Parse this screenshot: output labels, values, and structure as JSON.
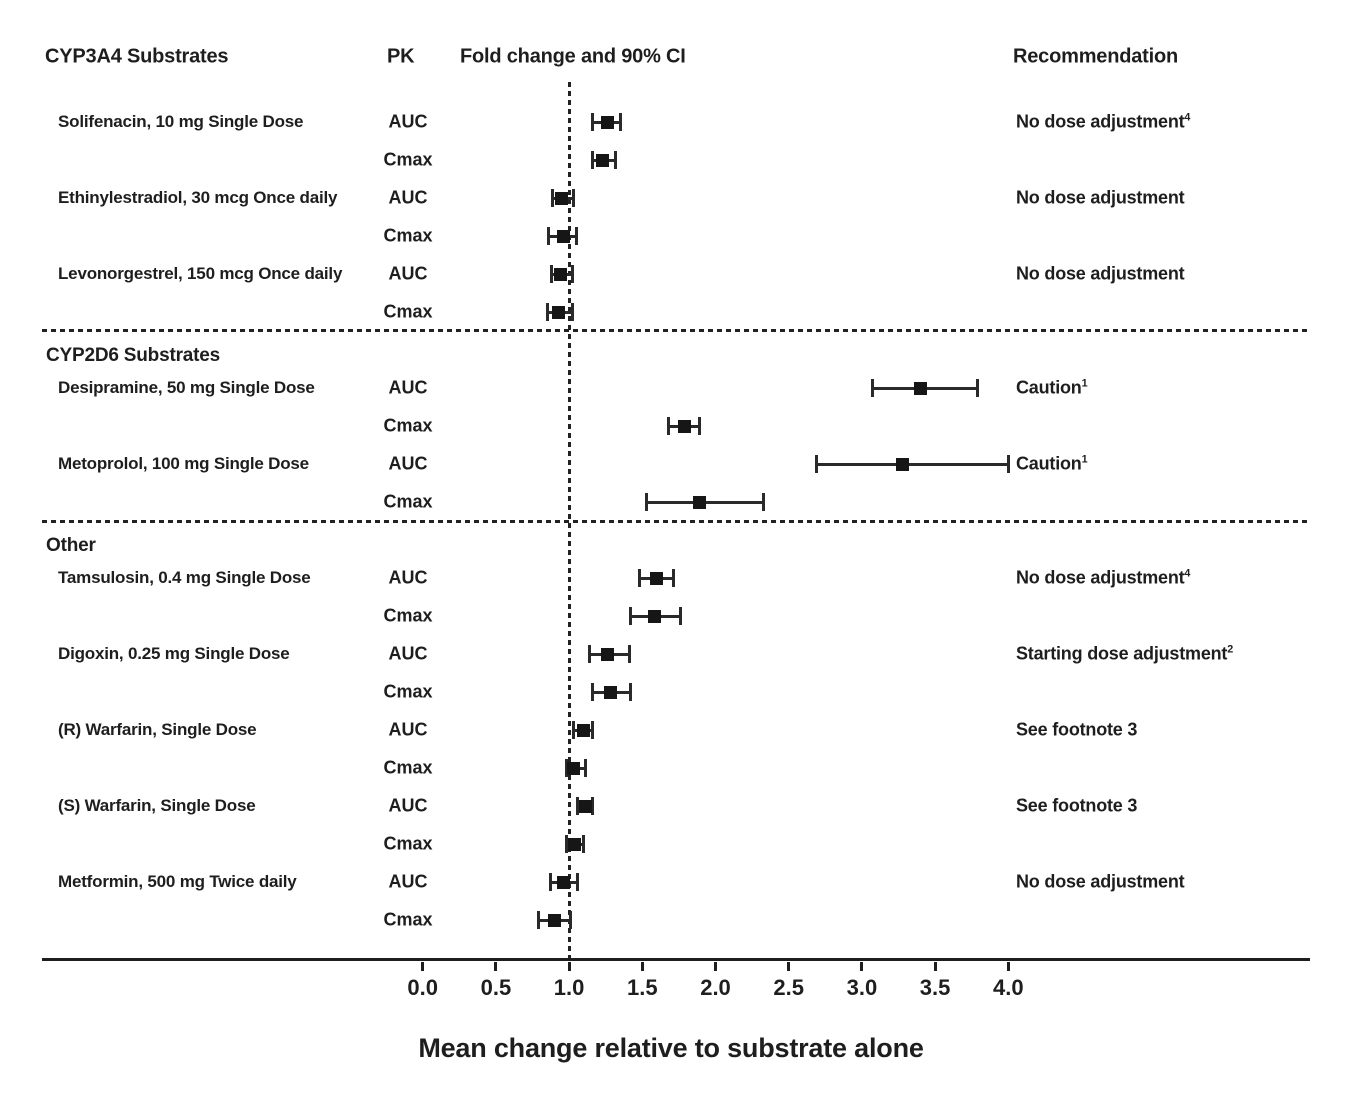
{
  "header": {
    "col_substrates": "CYP3A4 Substrates",
    "col_pk": "PK",
    "col_fold": "Fold change and 90% CI",
    "col_rec": "Recommendation"
  },
  "colors": {
    "ink": "#1e1e1e",
    "background": "#ffffff"
  },
  "chart_data": {
    "type": "forest",
    "title": "Fold change and 90% CI",
    "xlabel": "Mean change relative to substrate alone",
    "axis": {
      "ticks": [
        0.0,
        0.5,
        1.0,
        1.5,
        2.0,
        2.5,
        3.0,
        3.5,
        4.0
      ],
      "tick_labels": [
        "0.0",
        "0.5",
        "1.0",
        "1.5",
        "2.0",
        "2.5",
        "3.0",
        "3.5",
        "4.0"
      ],
      "range": [
        0.0,
        4.0
      ],
      "ref_line": 1.0,
      "grid": false
    },
    "sections": [
      {
        "label": "",
        "rows": [
          {
            "substrate": "Solifenacin, 10 mg Single Dose",
            "pk": "AUC",
            "value": 1.26,
            "lo": 1.16,
            "hi": 1.35,
            "rec": "No dose adjustment",
            "rec_sup": "4"
          },
          {
            "substrate": "",
            "pk": "Cmax",
            "value": 1.23,
            "lo": 1.16,
            "hi": 1.32
          },
          {
            "substrate": "Ethinylestradiol, 30 mcg Once daily",
            "pk": "AUC",
            "value": 0.95,
            "lo": 0.89,
            "hi": 1.03,
            "rec": "No dose adjustment"
          },
          {
            "substrate": "",
            "pk": "Cmax",
            "value": 0.96,
            "lo": 0.86,
            "hi": 1.05
          },
          {
            "substrate": "Levonorgestrel, 150 mcg Once daily",
            "pk": "AUC",
            "value": 0.94,
            "lo": 0.88,
            "hi": 1.02,
            "rec": "No dose adjustment"
          },
          {
            "substrate": "",
            "pk": "Cmax",
            "value": 0.93,
            "lo": 0.85,
            "hi": 1.02
          }
        ]
      },
      {
        "label": "CYP2D6 Substrates",
        "rows": [
          {
            "substrate": "Desipramine, 50 mg Single Dose",
            "pk": "AUC",
            "value": 3.4,
            "lo": 3.07,
            "hi": 3.79,
            "rec": "Caution",
            "rec_sup": "1"
          },
          {
            "substrate": "",
            "pk": "Cmax",
            "value": 1.79,
            "lo": 1.68,
            "hi": 1.89
          },
          {
            "substrate": "Metoprolol, 100 mg Single Dose",
            "pk": "AUC",
            "value": 3.28,
            "lo": 2.69,
            "hi": 4.0,
            "rec": "Caution",
            "rec_sup": "1"
          },
          {
            "substrate": "",
            "pk": "Cmax",
            "value": 1.89,
            "lo": 1.53,
            "hi": 2.33
          }
        ]
      },
      {
        "label": "Other",
        "rows": [
          {
            "substrate": "Tamsulosin, 0.4 mg Single Dose",
            "pk": "AUC",
            "value": 1.6,
            "lo": 1.48,
            "hi": 1.71,
            "rec": "No dose adjustment",
            "rec_sup": "4"
          },
          {
            "substrate": "",
            "pk": "Cmax",
            "value": 1.58,
            "lo": 1.42,
            "hi": 1.76
          },
          {
            "substrate": "Digoxin, 0.25 mg Single Dose",
            "pk": "AUC",
            "value": 1.26,
            "lo": 1.14,
            "hi": 1.41,
            "rec": "Starting dose adjustment",
            "rec_sup": "2"
          },
          {
            "substrate": "",
            "pk": "Cmax",
            "value": 1.28,
            "lo": 1.16,
            "hi": 1.42
          },
          {
            "substrate": "(R) Warfarin, Single Dose",
            "pk": "AUC",
            "value": 1.1,
            "lo": 1.03,
            "hi": 1.16,
            "rec": "See footnote 3"
          },
          {
            "substrate": "",
            "pk": "Cmax",
            "value": 1.03,
            "lo": 0.98,
            "hi": 1.11
          },
          {
            "substrate": "(S) Warfarin, Single Dose",
            "pk": "AUC",
            "value": 1.11,
            "lo": 1.06,
            "hi": 1.16,
            "rec": "See footnote 3"
          },
          {
            "substrate": "",
            "pk": "Cmax",
            "value": 1.04,
            "lo": 0.98,
            "hi": 1.1
          },
          {
            "substrate": "Metformin, 500 mg Twice daily",
            "pk": "AUC",
            "value": 0.96,
            "lo": 0.87,
            "hi": 1.06,
            "rec": "No dose adjustment"
          },
          {
            "substrate": "",
            "pk": "Cmax",
            "value": 0.9,
            "lo": 0.79,
            "hi": 1.01
          }
        ]
      }
    ]
  }
}
